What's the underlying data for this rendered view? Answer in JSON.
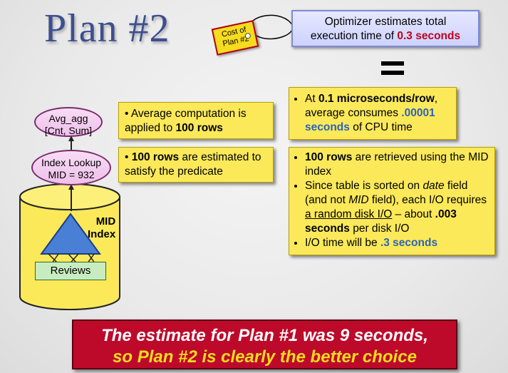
{
  "title": "Plan #2",
  "tag": {
    "line1": "Cost of",
    "line2": "Plan #2"
  },
  "estimate": {
    "line1": "Optimizer estimates total",
    "line2_prefix": "execution time of ",
    "line2_value": "0.3 seconds"
  },
  "nodes": {
    "avg": {
      "line1": "Avg_agg",
      "line2": "[Cnt, Sum]"
    },
    "lookup": {
      "line1": "Index Lookup",
      "line2": "MID = 932"
    },
    "index_label": {
      "line1": "MID",
      "line2": "Index"
    },
    "reviews": "Reviews"
  },
  "left_notes": {
    "avg": {
      "pre": "• Average computation is applied to ",
      "bold": "100 rows"
    },
    "lookup": {
      "bullet": "• ",
      "bold": "100 rows",
      "post": " are estimated to satisfy the predicate"
    }
  },
  "cpu_box": {
    "pre": "At ",
    "bold": "0.1 microseconds/row",
    "mid": ", average consumes  ",
    "value": ".00001 seconds",
    "post": " of CPU time"
  },
  "io_box": {
    "b1_bold": "100 rows",
    "b1_rest": " are retrieved using the MID index",
    "b2_a": "Since table is sorted on ",
    "b2_date": "date",
    "b2_b": " field (and not ",
    "b2_mid": "MID",
    "b2_c": " field), each I/O requires ",
    "b2_u": "a random disk I/O",
    "b2_d": " – about  ",
    "b2_bold": ".003 seconds",
    "b2_e": " per disk I/O",
    "b3_pre": "I/O time will be ",
    "b3_value": ".3 seconds"
  },
  "conclusion": {
    "line1": "The estimate for Plan #1 was 9 seconds,",
    "line2": "so Plan #2 is clearly the better choice"
  }
}
